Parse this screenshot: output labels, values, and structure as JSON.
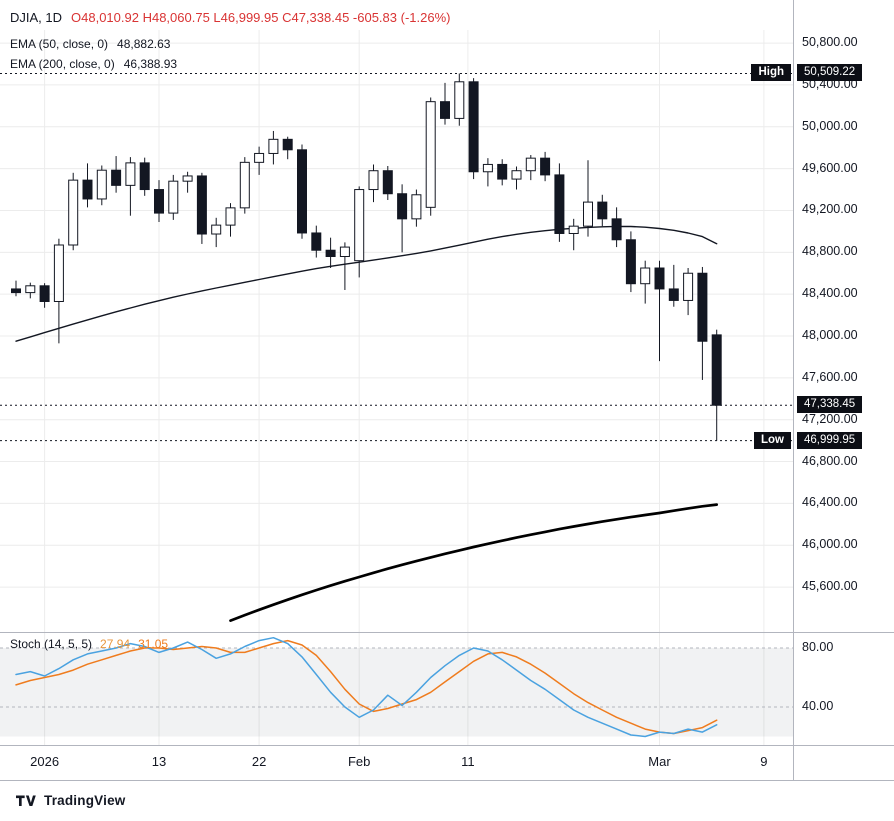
{
  "legend": {
    "title": "DJIA, 1D",
    "ohlc": "O48,010.92  H48,060.75  L46,999.95  C47,338.45  -605.83 (-1.26%)",
    "ema50_label": "EMA (50, close, 0)",
    "ema50_value": "48,882.63",
    "ema200_label": "EMA (200, close, 0)",
    "ema200_value": "46,388.93"
  },
  "stoch_legend": {
    "label": "Stoch (14, 5, 5)",
    "k_value": "27.94",
    "d_value": "31.05"
  },
  "footer": {
    "brand": "TradingView"
  },
  "colors": {
    "up_fill": "#ffffff",
    "down_fill": "#131722",
    "wick": "#131722",
    "ema50": "#131722",
    "ema200": "#000000",
    "stoch_k": "#4aa2e0",
    "stoch_d": "#ef7c1e",
    "stoch_k_value": "#e8963c",
    "stoch_d_value": "#ef7c1e",
    "grid": "#ececec",
    "band": "#787b86",
    "band_edge": "#b2b5be",
    "separator": "#b2b5be",
    "axis_text": "#131722",
    "tag_bg": "#0c0e15",
    "ohlc_red": "#d93434",
    "dotted_level": "#131722"
  },
  "chart_data": {
    "type": "candlestick",
    "symbol": "DJIA",
    "interval": "1D",
    "ohlc_display": {
      "open": "48,010.92",
      "high": "48,060.75",
      "low": "46,999.95",
      "close": "47,338.45",
      "change": "-605.83 (-1.26%)"
    },
    "price_axis": {
      "range": [
        45190,
        50925
      ],
      "ticks": [
        {
          "value": 50800,
          "label": "50,800.00"
        },
        {
          "value": 50400,
          "label": "50,400.00"
        },
        {
          "value": 50000,
          "label": "50,000.00"
        },
        {
          "value": 49600,
          "label": "49,600.00"
        },
        {
          "value": 49200,
          "label": "49,200.00"
        },
        {
          "value": 48800,
          "label": "48,800.00"
        },
        {
          "value": 48400,
          "label": "48,400.00"
        },
        {
          "value": 48000,
          "label": "48,000.00"
        },
        {
          "value": 47600,
          "label": "47,600.00"
        },
        {
          "value": 47200,
          "label": "47,200.00"
        },
        {
          "value": 46800,
          "label": "46,800.00"
        },
        {
          "value": 46400,
          "label": "46,400.00"
        },
        {
          "value": 46000,
          "label": "46,000.00"
        },
        {
          "value": 45600,
          "label": "45,600.00"
        }
      ]
    },
    "time_axis": {
      "labels": [
        {
          "text": "2026",
          "index": 2
        },
        {
          "text": "13",
          "index": 10
        },
        {
          "text": "22",
          "index": 17
        },
        {
          "text": "Feb",
          "index": 24
        },
        {
          "text": "11",
          "index": 31.6
        },
        {
          "text": "Mar",
          "index": 45
        },
        {
          "text": "9",
          "index": 52.3
        }
      ]
    },
    "key_levels": [
      {
        "side": "High",
        "price": 50509.22,
        "price_label": "50,509.22"
      },
      {
        "side": "",
        "price": 47338.45,
        "price_label": "47,338.45"
      },
      {
        "side": "Low",
        "price": 46999.95,
        "price_label": "46,999.95"
      }
    ],
    "candles": [
      [
        48450,
        48530,
        48380,
        48415
      ],
      [
        48415,
        48510,
        48360,
        48480
      ],
      [
        48480,
        48505,
        48270,
        48330
      ],
      [
        48330,
        48930,
        47930,
        48870
      ],
      [
        48870,
        49560,
        48820,
        49490
      ],
      [
        49490,
        49650,
        49230,
        49310
      ],
      [
        49310,
        49630,
        49250,
        49585
      ],
      [
        49585,
        49720,
        49370,
        49440
      ],
      [
        49440,
        49710,
        49150,
        49655
      ],
      [
        49655,
        49705,
        49340,
        49400
      ],
      [
        49400,
        49490,
        49090,
        49175
      ],
      [
        49175,
        49540,
        49110,
        49480
      ],
      [
        49480,
        49570,
        49370,
        49530
      ],
      [
        49530,
        49560,
        48880,
        48975
      ],
      [
        48975,
        49130,
        48850,
        49060
      ],
      [
        49060,
        49270,
        48950,
        49225
      ],
      [
        49225,
        49710,
        49170,
        49660
      ],
      [
        49660,
        49810,
        49540,
        49745
      ],
      [
        49745,
        49960,
        49640,
        49880
      ],
      [
        49880,
        49905,
        49690,
        49780
      ],
      [
        49780,
        49830,
        48930,
        48985
      ],
      [
        48985,
        49055,
        48750,
        48820
      ],
      [
        48820,
        48940,
        48650,
        48760
      ],
      [
        48760,
        48895,
        48440,
        48850
      ],
      [
        48720,
        49430,
        48560,
        49400
      ],
      [
        49400,
        49640,
        49280,
        49580
      ],
      [
        49580,
        49625,
        49300,
        49360
      ],
      [
        49360,
        49450,
        48800,
        49120
      ],
      [
        49120,
        49400,
        49045,
        49350
      ],
      [
        49230,
        50280,
        49150,
        50240
      ],
      [
        50240,
        50420,
        50020,
        50080
      ],
      [
        50080,
        50509.22,
        50010,
        50430
      ],
      [
        50430,
        50465,
        49500,
        49570
      ],
      [
        49570,
        49700,
        49430,
        49640
      ],
      [
        49640,
        49690,
        49440,
        49500
      ],
      [
        49500,
        49620,
        49400,
        49580
      ],
      [
        49580,
        49730,
        49490,
        49700
      ],
      [
        49700,
        49760,
        49480,
        49540
      ],
      [
        49540,
        49650,
        48900,
        48980
      ],
      [
        48980,
        49120,
        48820,
        49050
      ],
      [
        49050,
        49680,
        48950,
        49280
      ],
      [
        49280,
        49350,
        49050,
        49120
      ],
      [
        49120,
        49230,
        48850,
        48920
      ],
      [
        48920,
        49000,
        48420,
        48500
      ],
      [
        48500,
        48720,
        48310,
        48650
      ],
      [
        48650,
        48720,
        47760,
        48450
      ],
      [
        48450,
        48680,
        48280,
        48340
      ],
      [
        48340,
        48650,
        48200,
        48600
      ],
      [
        48600,
        48660,
        47580,
        47950
      ],
      [
        48010.92,
        48060.75,
        46999.95,
        47338.45
      ]
    ],
    "ema50": [
      47950,
      47992,
      48033,
      48074,
      48114,
      48154,
      48193,
      48231,
      48268,
      48304,
      48338,
      48371,
      48402,
      48431,
      48459,
      48486,
      48513,
      48540,
      48567,
      48594,
      48620,
      48644,
      48666,
      48686,
      48706,
      48726,
      48747,
      48768,
      48790,
      48814,
      48840,
      48868,
      48897,
      48925,
      48950,
      48972,
      48991,
      49007,
      49020,
      49030,
      49038,
      49044,
      49048,
      49047,
      49040,
      49028,
      49010,
      48985,
      48950,
      48882.63
    ],
    "ema200": [
      null,
      null,
      null,
      null,
      null,
      null,
      null,
      null,
      null,
      null,
      null,
      null,
      null,
      null,
      null,
      45280,
      45332,
      45383,
      45432,
      45480,
      45526,
      45571,
      45614,
      45656,
      45697,
      45737,
      45776,
      45813,
      45849,
      45884,
      45918,
      45951,
      45983,
      46014,
      46044,
      46073,
      46101,
      46128,
      46154,
      46179,
      46203,
      46226,
      46248,
      46269,
      46289,
      46308,
      46330,
      46352,
      46372,
      46388.93
    ],
    "stoch": {
      "band": [
        20,
        80
      ],
      "ticks": [
        {
          "value": 80,
          "label": "80.00"
        },
        {
          "value": 40,
          "label": "40.00"
        }
      ],
      "k": [
        62,
        64,
        61,
        66,
        72,
        76,
        78,
        80,
        83,
        81,
        77,
        80,
        84,
        79,
        73,
        76,
        81,
        85,
        87,
        83,
        74,
        62,
        50,
        40,
        33,
        38,
        48,
        41,
        50,
        60,
        68,
        75,
        80,
        78,
        72,
        65,
        58,
        52,
        45,
        38,
        33,
        29,
        25,
        21,
        20,
        23,
        22,
        25,
        23,
        27.94
      ],
      "d": [
        55,
        58,
        60,
        62,
        65,
        69,
        72,
        75,
        78,
        80,
        80,
        79,
        80,
        81,
        80,
        77,
        77,
        80,
        83,
        85,
        82,
        75,
        64,
        52,
        42,
        37,
        39,
        42,
        45,
        50,
        57,
        64,
        71,
        76,
        77,
        74,
        69,
        63,
        56,
        49,
        43,
        38,
        33,
        29,
        25,
        23,
        22,
        24,
        26,
        31.05
      ]
    }
  }
}
